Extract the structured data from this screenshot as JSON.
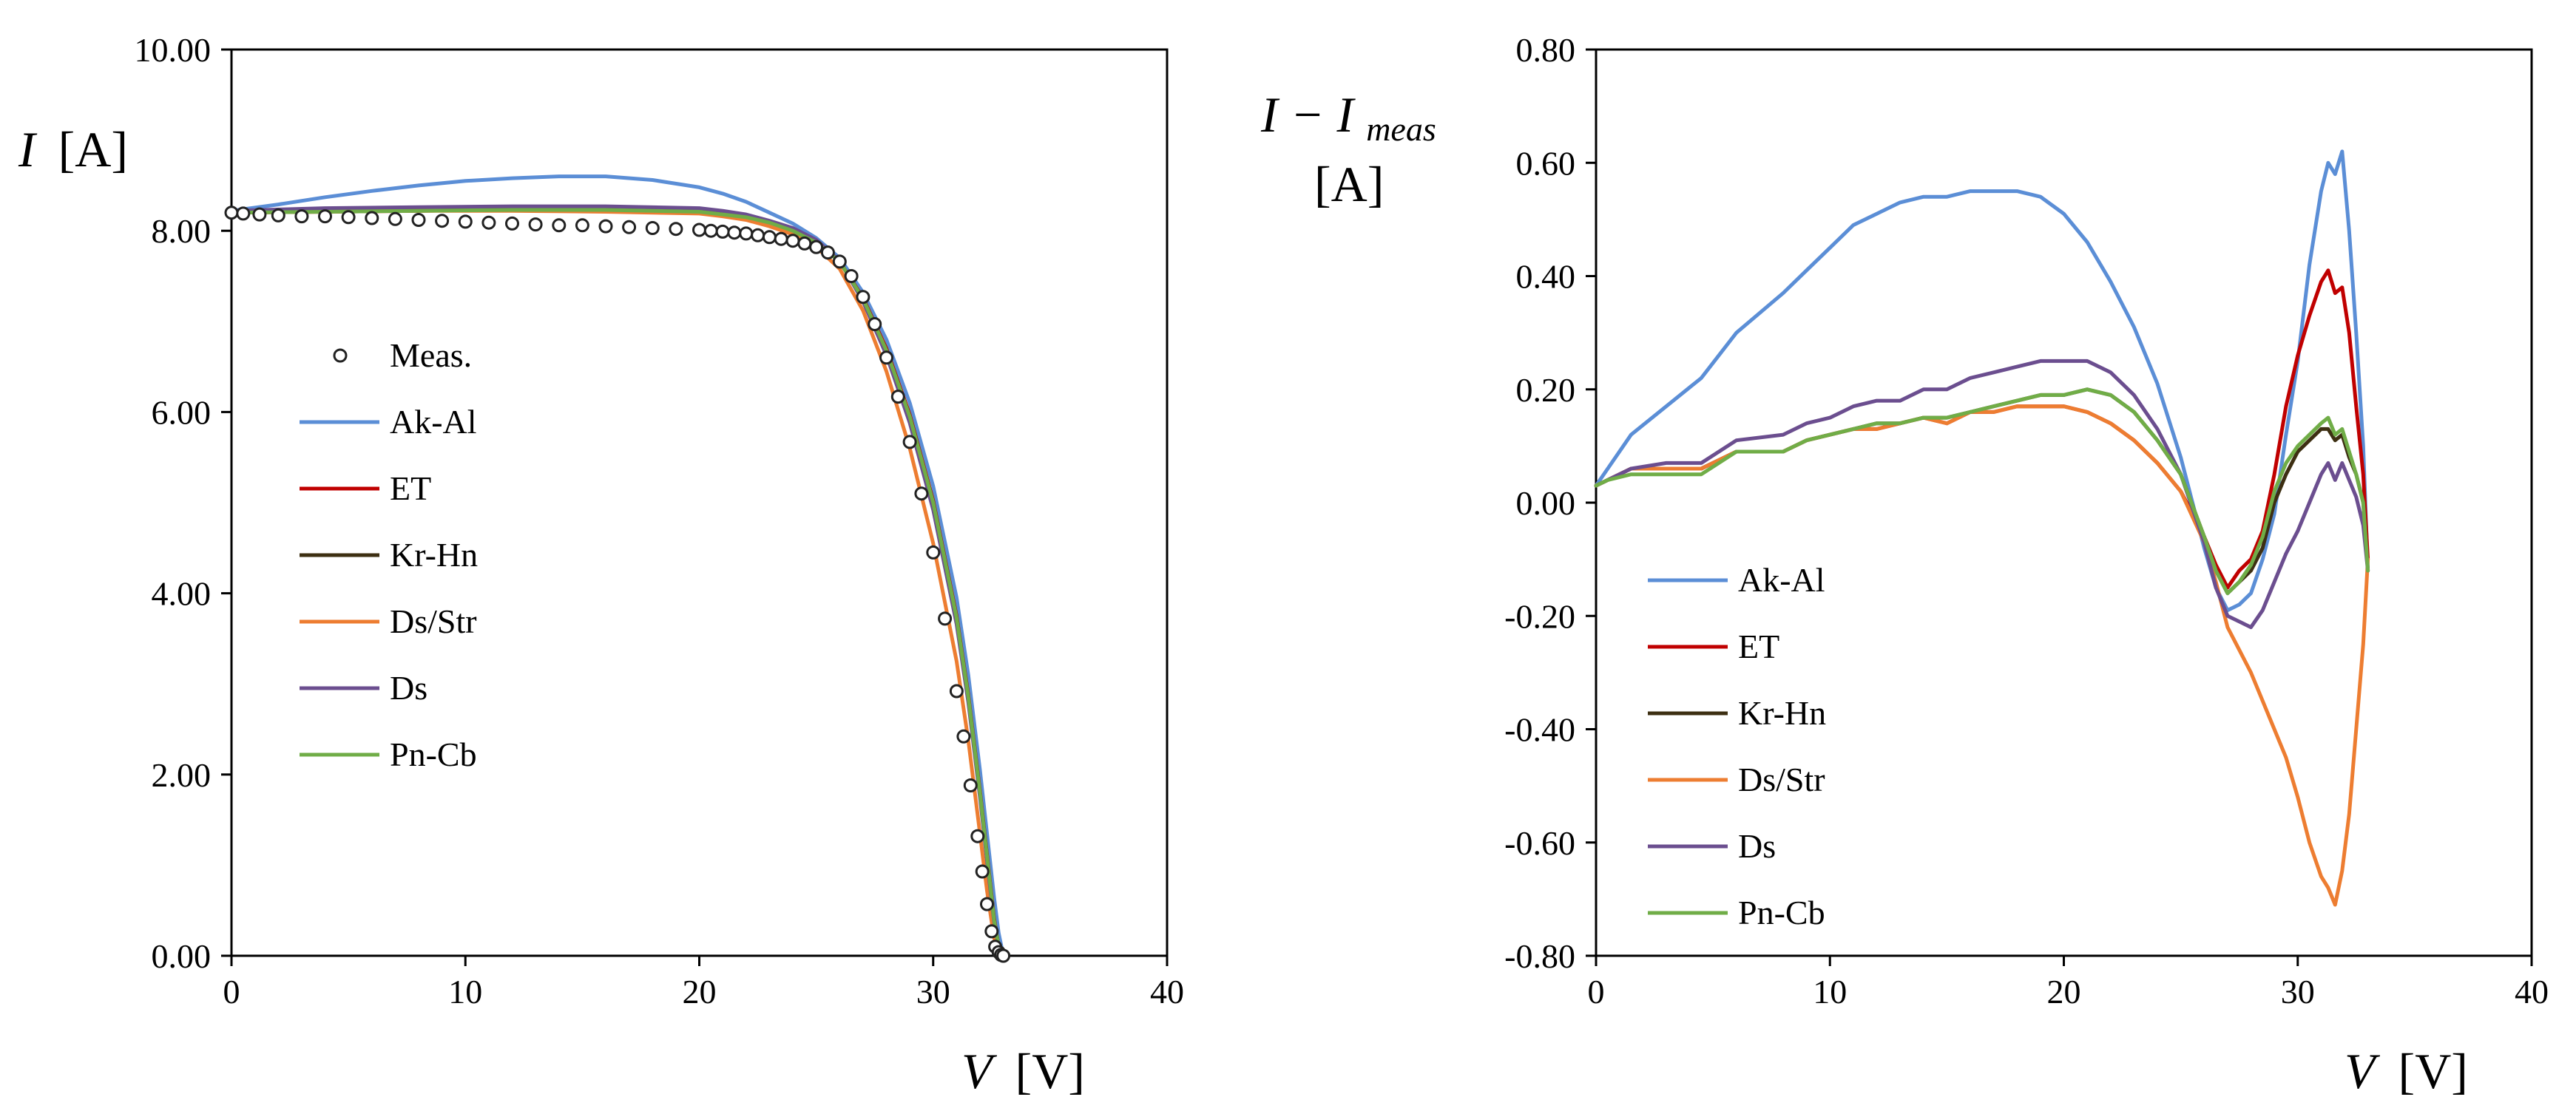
{
  "chart_data": [
    {
      "type": "line",
      "id": "iv",
      "title": "",
      "xlabel_var": "V",
      "xlabel_unit": "[V]",
      "ylabel_var": "I",
      "ylabel_unit": "[A]",
      "xlim": [
        0,
        40
      ],
      "ylim": [
        0,
        10
      ],
      "xticks": [
        0,
        10,
        20,
        30,
        40
      ],
      "xtick_labels": [
        "0",
        "10",
        "20",
        "30",
        "40"
      ],
      "yticks": [
        0,
        2,
        4,
        6,
        8,
        10
      ],
      "ytick_labels": [
        "0.00",
        "2.00",
        "4.00",
        "6.00",
        "8.00",
        "10.00"
      ],
      "grid": false,
      "legend_position": "center-left",
      "measured": {
        "name": "Meas.",
        "color": "#222222",
        "v": [
          0.0,
          0.5,
          1.2,
          2.0,
          3.0,
          4.0,
          5.0,
          6.0,
          7.0,
          8.0,
          9.0,
          10.0,
          11.0,
          12.0,
          13.0,
          14.0,
          15.0,
          16.0,
          17.0,
          18.0,
          19.0,
          20.0,
          20.5,
          21.0,
          21.5,
          22.0,
          22.5,
          23.0,
          23.5,
          24.0,
          24.5,
          25.0,
          25.5,
          26.0,
          26.5,
          27.0,
          27.5,
          28.0,
          28.5,
          29.0,
          29.5,
          30.0,
          30.5,
          31.0,
          31.3,
          31.6,
          31.9,
          32.1,
          32.3,
          32.5,
          32.65,
          32.8,
          32.9,
          33.0
        ],
        "i": [
          8.2,
          8.19,
          8.18,
          8.17,
          8.16,
          8.16,
          8.15,
          8.14,
          8.13,
          8.12,
          8.11,
          8.1,
          8.09,
          8.08,
          8.07,
          8.06,
          8.06,
          8.05,
          8.04,
          8.03,
          8.02,
          8.01,
          8.0,
          7.99,
          7.98,
          7.97,
          7.95,
          7.93,
          7.91,
          7.89,
          7.86,
          7.82,
          7.76,
          7.66,
          7.5,
          7.27,
          6.97,
          6.6,
          6.17,
          5.67,
          5.1,
          4.45,
          3.72,
          2.92,
          2.42,
          1.88,
          1.32,
          0.93,
          0.57,
          0.27,
          0.1,
          0.04,
          0.01,
          0.0
        ]
      },
      "series": [
        {
          "name": "Ak-Al",
          "color": "#5B8ED6",
          "v": [
            0,
            2,
            4,
            6,
            8,
            10,
            12,
            14,
            16,
            18,
            20,
            21,
            22,
            23,
            24,
            25,
            26,
            27,
            28,
            29,
            30,
            31,
            31.5,
            32,
            32.3,
            32.6,
            32.8,
            33.0
          ],
          "i": [
            8.22,
            8.29,
            8.37,
            8.44,
            8.5,
            8.55,
            8.58,
            8.6,
            8.6,
            8.56,
            8.48,
            8.41,
            8.32,
            8.2,
            8.08,
            7.92,
            7.7,
            7.32,
            6.8,
            6.1,
            5.18,
            3.95,
            3.1,
            2.05,
            1.35,
            0.65,
            0.25,
            0.0
          ]
        },
        {
          "name": "ET",
          "color": "#C00000",
          "v": [
            0,
            4,
            8,
            12,
            16,
            20,
            21,
            22,
            23,
            24,
            25,
            26,
            27,
            28,
            29,
            30,
            31,
            31.5,
            32,
            32.3,
            32.6,
            32.8,
            33.0
          ],
          "i": [
            8.2,
            8.21,
            8.22,
            8.23,
            8.23,
            8.2,
            8.18,
            8.14,
            8.08,
            8.0,
            7.88,
            7.66,
            7.26,
            6.7,
            5.97,
            5.02,
            3.75,
            2.88,
            1.82,
            1.12,
            0.42,
            0.1,
            0.0
          ]
        },
        {
          "name": "Kr-Hn",
          "color": "#3D2F12",
          "v": [
            0,
            4,
            8,
            12,
            16,
            20,
            21,
            22,
            23,
            24,
            25,
            26,
            27,
            28,
            29,
            30,
            31,
            31.5,
            32,
            32.3,
            32.6,
            32.8,
            33.0
          ],
          "i": [
            8.21,
            8.23,
            8.24,
            8.25,
            8.25,
            8.22,
            8.19,
            8.15,
            8.09,
            8.01,
            7.88,
            7.66,
            7.25,
            6.68,
            5.95,
            5.0,
            3.73,
            2.86,
            1.8,
            1.1,
            0.4,
            0.1,
            0.0
          ]
        },
        {
          "name": "Ds/Str",
          "color": "#ED7D31",
          "v": [
            0,
            4,
            8,
            12,
            16,
            20,
            21,
            22,
            23,
            24,
            25,
            26,
            27,
            28,
            29,
            30,
            31,
            31.5,
            32,
            32.3,
            32.6,
            32.8,
            33.0
          ],
          "i": [
            8.2,
            8.21,
            8.22,
            8.22,
            8.21,
            8.19,
            8.16,
            8.12,
            8.05,
            7.96,
            7.82,
            7.58,
            7.12,
            6.45,
            5.6,
            4.55,
            3.25,
            2.38,
            1.35,
            0.72,
            0.2,
            0.05,
            0.0
          ]
        },
        {
          "name": "Ds",
          "color": "#6B4E8F",
          "v": [
            0,
            4,
            8,
            12,
            16,
            20,
            21,
            22,
            23,
            24,
            25,
            26,
            27,
            28,
            29,
            30,
            31,
            31.5,
            32,
            32.3,
            32.6,
            32.8,
            33.0
          ],
          "i": [
            8.22,
            8.25,
            8.26,
            8.27,
            8.27,
            8.25,
            8.22,
            8.18,
            8.11,
            8.03,
            7.9,
            7.67,
            7.22,
            6.63,
            5.88,
            4.92,
            3.66,
            2.8,
            1.75,
            1.05,
            0.38,
            0.1,
            0.0
          ]
        },
        {
          "name": "Pn-Cb",
          "color": "#70AD47",
          "v": [
            0,
            4,
            8,
            12,
            16,
            20,
            21,
            22,
            23,
            24,
            25,
            26,
            27,
            28,
            29,
            30,
            31,
            31.5,
            32,
            32.3,
            32.6,
            32.8,
            33.0
          ],
          "i": [
            8.2,
            8.21,
            8.22,
            8.23,
            8.23,
            8.21,
            8.18,
            8.15,
            8.09,
            8.0,
            7.87,
            7.66,
            7.25,
            6.68,
            5.95,
            5.0,
            3.73,
            2.86,
            1.8,
            1.1,
            0.4,
            0.1,
            0.0
          ]
        }
      ]
    },
    {
      "type": "line",
      "id": "err",
      "title": "",
      "xlabel_var": "V",
      "xlabel_unit": "[V]",
      "ylabel_var": "I − I",
      "ylabel_sub": "meas",
      "ylabel_unit": "[A]",
      "xlim": [
        0,
        40
      ],
      "ylim": [
        -0.8,
        0.8
      ],
      "xticks": [
        0,
        10,
        20,
        30,
        40
      ],
      "xtick_labels": [
        "0",
        "10",
        "20",
        "30",
        "40"
      ],
      "yticks": [
        -0.8,
        -0.6,
        -0.4,
        -0.2,
        0.0,
        0.2,
        0.4,
        0.6,
        0.8
      ],
      "ytick_labels": [
        "-0.80",
        "-0.60",
        "-0.40",
        "-0.20",
        "0.00",
        "0.20",
        "0.40",
        "0.60",
        "0.80"
      ],
      "grid": false,
      "legend_position": "bottom-left",
      "series": [
        {
          "name": "Ak-Al",
          "color": "#5B8ED6",
          "v": [
            0,
            0.5,
            1.5,
            3,
            4.5,
            6,
            8,
            9,
            10,
            11,
            12,
            13,
            14,
            15,
            16,
            17,
            18,
            19,
            20,
            21,
            22,
            23,
            24,
            25,
            26,
            26.5,
            27,
            27.5,
            28,
            28.5,
            29,
            29.5,
            30,
            30.5,
            31,
            31.3,
            31.6,
            31.9,
            32.2,
            32.5,
            32.8,
            33.0
          ],
          "d": [
            0.03,
            0.06,
            0.12,
            0.17,
            0.22,
            0.3,
            0.37,
            0.41,
            0.45,
            0.49,
            0.51,
            0.53,
            0.54,
            0.54,
            0.55,
            0.55,
            0.55,
            0.54,
            0.51,
            0.46,
            0.39,
            0.31,
            0.21,
            0.08,
            -0.08,
            -0.15,
            -0.19,
            -0.18,
            -0.16,
            -0.1,
            -0.02,
            0.12,
            0.25,
            0.42,
            0.55,
            0.6,
            0.58,
            0.62,
            0.48,
            0.3,
            0.1,
            -0.12
          ]
        },
        {
          "name": "ET",
          "color": "#C00000",
          "v": [
            0,
            0.5,
            1.5,
            3,
            4.5,
            6,
            8,
            9,
            10,
            11,
            12,
            13,
            14,
            15,
            16,
            17,
            18,
            19,
            20,
            21,
            22,
            23,
            24,
            25,
            26,
            26.5,
            27,
            27.5,
            28,
            28.5,
            29,
            29.5,
            30,
            30.5,
            31,
            31.3,
            31.6,
            31.9,
            32.2,
            32.5,
            32.8,
            33.0
          ],
          "d": [
            0.03,
            0.04,
            0.06,
            0.06,
            0.06,
            0.09,
            0.09,
            0.11,
            0.12,
            0.13,
            0.13,
            0.14,
            0.15,
            0.14,
            0.16,
            0.16,
            0.17,
            0.17,
            0.17,
            0.16,
            0.14,
            0.11,
            0.07,
            0.02,
            -0.06,
            -0.11,
            -0.15,
            -0.12,
            -0.1,
            -0.05,
            0.05,
            0.17,
            0.26,
            0.33,
            0.39,
            0.41,
            0.37,
            0.38,
            0.3,
            0.17,
            0.05,
            -0.1
          ]
        },
        {
          "name": "Kr-Hn",
          "color": "#3D2F12",
          "v": [
            0,
            0.5,
            1.5,
            3,
            4.5,
            6,
            8,
            9,
            10,
            11,
            12,
            13,
            14,
            15,
            16,
            17,
            18,
            19,
            20,
            21,
            22,
            23,
            24,
            25,
            26,
            26.5,
            27,
            27.5,
            28,
            28.5,
            29,
            29.5,
            30,
            30.5,
            31,
            31.3,
            31.6,
            31.9,
            32.2,
            32.5,
            32.8,
            33.0
          ],
          "d": [
            0.03,
            0.04,
            0.06,
            0.06,
            0.06,
            0.09,
            0.09,
            0.11,
            0.12,
            0.13,
            0.14,
            0.14,
            0.15,
            0.15,
            0.16,
            0.17,
            0.18,
            0.19,
            0.19,
            0.2,
            0.19,
            0.16,
            0.11,
            0.05,
            -0.06,
            -0.12,
            -0.16,
            -0.14,
            -0.12,
            -0.08,
            0.0,
            0.05,
            0.09,
            0.11,
            0.13,
            0.13,
            0.11,
            0.12,
            0.08,
            0.05,
            0.0,
            -0.12
          ]
        },
        {
          "name": "Ds/Str",
          "color": "#ED7D31",
          "v": [
            0,
            0.5,
            1.5,
            3,
            4.5,
            6,
            8,
            9,
            10,
            11,
            12,
            13,
            14,
            15,
            16,
            17,
            18,
            19,
            20,
            21,
            22,
            23,
            24,
            25,
            26,
            26.5,
            27,
            27.5,
            28,
            28.5,
            29,
            29.5,
            30,
            30.5,
            31,
            31.3,
            31.6,
            31.9,
            32.2,
            32.5,
            32.8,
            33.0
          ],
          "d": [
            0.03,
            0.04,
            0.06,
            0.06,
            0.06,
            0.09,
            0.09,
            0.11,
            0.12,
            0.13,
            0.13,
            0.14,
            0.15,
            0.14,
            0.16,
            0.16,
            0.17,
            0.17,
            0.17,
            0.16,
            0.14,
            0.11,
            0.07,
            0.02,
            -0.07,
            -0.14,
            -0.22,
            -0.26,
            -0.3,
            -0.35,
            -0.4,
            -0.45,
            -0.52,
            -0.6,
            -0.66,
            -0.68,
            -0.71,
            -0.65,
            -0.55,
            -0.4,
            -0.25,
            -0.1
          ]
        },
        {
          "name": "Ds",
          "color": "#6B4E8F",
          "v": [
            0,
            0.5,
            1.5,
            3,
            4.5,
            6,
            8,
            9,
            10,
            11,
            12,
            13,
            14,
            15,
            16,
            17,
            18,
            19,
            20,
            21,
            22,
            23,
            24,
            25,
            26,
            26.5,
            27,
            27.5,
            28,
            28.5,
            29,
            29.5,
            30,
            30.5,
            31,
            31.3,
            31.6,
            31.9,
            32.2,
            32.5,
            32.8,
            33.0
          ],
          "d": [
            0.03,
            0.04,
            0.06,
            0.07,
            0.07,
            0.11,
            0.12,
            0.14,
            0.15,
            0.17,
            0.18,
            0.18,
            0.2,
            0.2,
            0.22,
            0.23,
            0.24,
            0.25,
            0.25,
            0.25,
            0.23,
            0.19,
            0.13,
            0.05,
            -0.07,
            -0.15,
            -0.2,
            -0.21,
            -0.22,
            -0.19,
            -0.14,
            -0.09,
            -0.05,
            0.0,
            0.05,
            0.07,
            0.04,
            0.07,
            0.04,
            0.01,
            -0.04,
            -0.12
          ]
        },
        {
          "name": "Pn-Cb",
          "color": "#70AD47",
          "v": [
            0,
            0.5,
            1.5,
            3,
            4.5,
            6,
            8,
            9,
            10,
            11,
            12,
            13,
            14,
            15,
            16,
            17,
            18,
            19,
            20,
            21,
            22,
            23,
            24,
            25,
            26,
            26.5,
            27,
            27.5,
            28,
            28.5,
            29,
            29.5,
            30,
            30.5,
            31,
            31.3,
            31.6,
            31.9,
            32.2,
            32.5,
            32.8,
            33.0
          ],
          "d": [
            0.03,
            0.04,
            0.05,
            0.05,
            0.05,
            0.09,
            0.09,
            0.11,
            0.12,
            0.13,
            0.14,
            0.14,
            0.15,
            0.15,
            0.16,
            0.17,
            0.18,
            0.19,
            0.19,
            0.2,
            0.19,
            0.16,
            0.11,
            0.05,
            -0.06,
            -0.12,
            -0.16,
            -0.14,
            -0.11,
            -0.06,
            0.02,
            0.07,
            0.1,
            0.12,
            0.14,
            0.15,
            0.12,
            0.13,
            0.09,
            0.05,
            0.0,
            -0.12
          ]
        }
      ]
    }
  ]
}
